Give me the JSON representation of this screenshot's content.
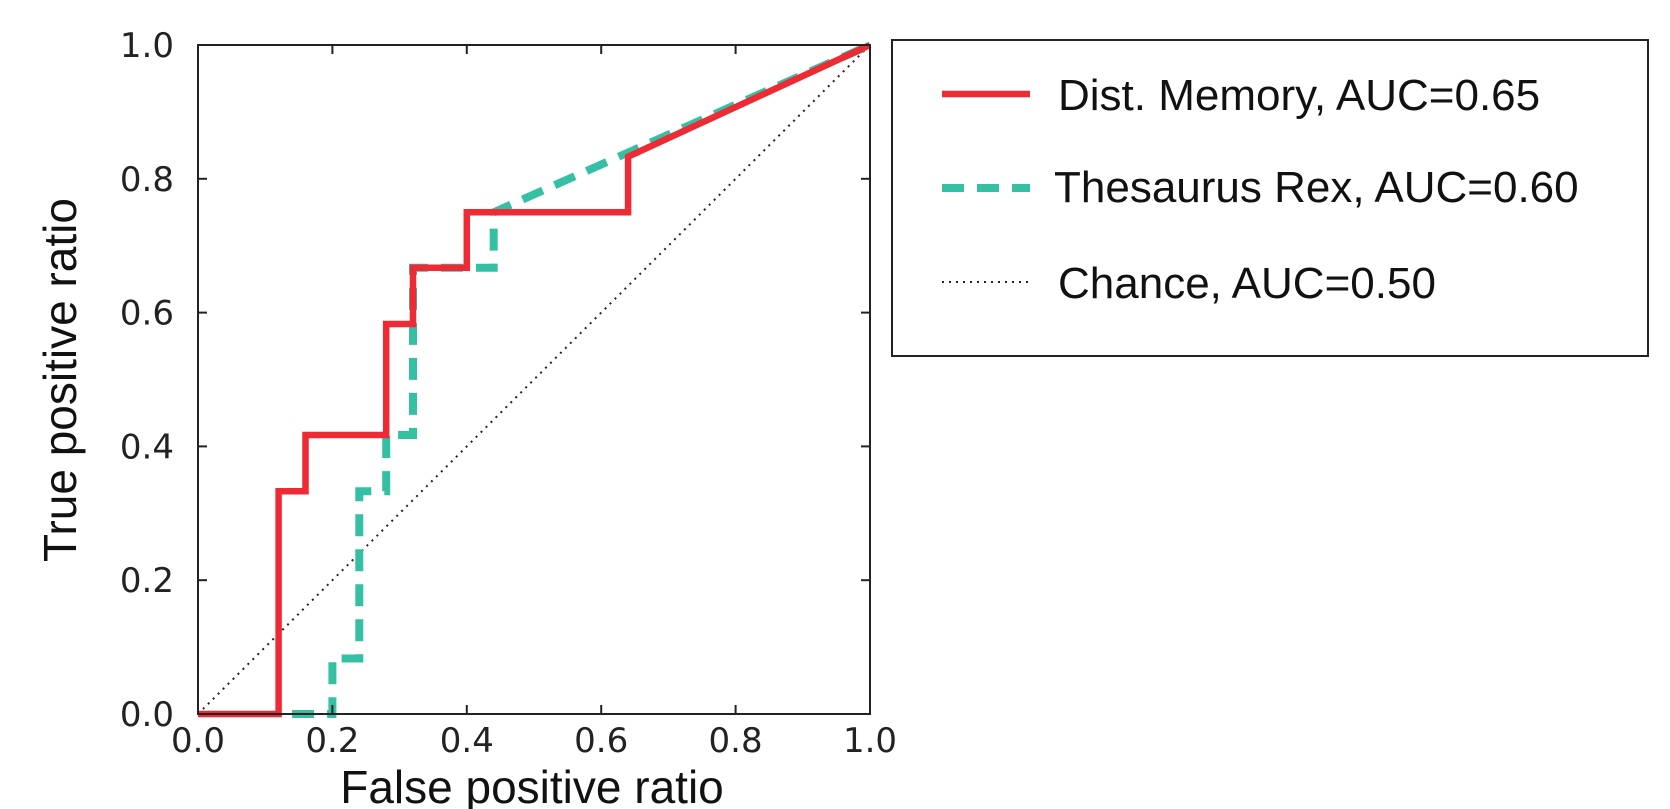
{
  "chart_data": {
    "type": "line",
    "title": "",
    "xlabel": "False positive ratio",
    "ylabel": "True positive ratio",
    "xlim": [
      0,
      1
    ],
    "ylim": [
      0,
      1
    ],
    "xticks": [
      "0.0",
      "0.2",
      "0.4",
      "0.6",
      "0.8",
      "1.0"
    ],
    "yticks": [
      "0.0",
      "0.2",
      "0.4",
      "0.6",
      "0.8",
      "1.0"
    ],
    "grid": false,
    "legend_position": "top-right outside",
    "series": [
      {
        "name": "Dist. Memory, AUC=0.65",
        "color": "#ee2a35",
        "style": "solid",
        "x": [
          0.0,
          0.12,
          0.12,
          0.16,
          0.16,
          0.28,
          0.28,
          0.32,
          0.32,
          0.4,
          0.4,
          0.64,
          0.64,
          1.0
        ],
        "y": [
          0.0,
          0.0,
          0.333,
          0.333,
          0.417,
          0.417,
          0.583,
          0.583,
          0.667,
          0.667,
          0.75,
          0.75,
          0.833,
          1.0
        ]
      },
      {
        "name": "Thesaurus Rex, AUC=0.60",
        "color": "#35c0a4",
        "style": "dashed",
        "x": [
          0.14,
          0.2,
          0.2,
          0.24,
          0.24,
          0.24,
          0.28,
          0.28,
          0.32,
          0.32,
          0.44,
          0.44,
          1.0
        ],
        "y": [
          0.0,
          0.0,
          0.083,
          0.083,
          0.25,
          0.333,
          0.333,
          0.417,
          0.417,
          0.667,
          0.667,
          0.75,
          1.0
        ]
      },
      {
        "name": "Chance, AUC=0.50",
        "color": "#222222",
        "style": "dotted",
        "x": [
          0.0,
          1.0
        ],
        "y": [
          0.0,
          1.0
        ]
      }
    ]
  }
}
